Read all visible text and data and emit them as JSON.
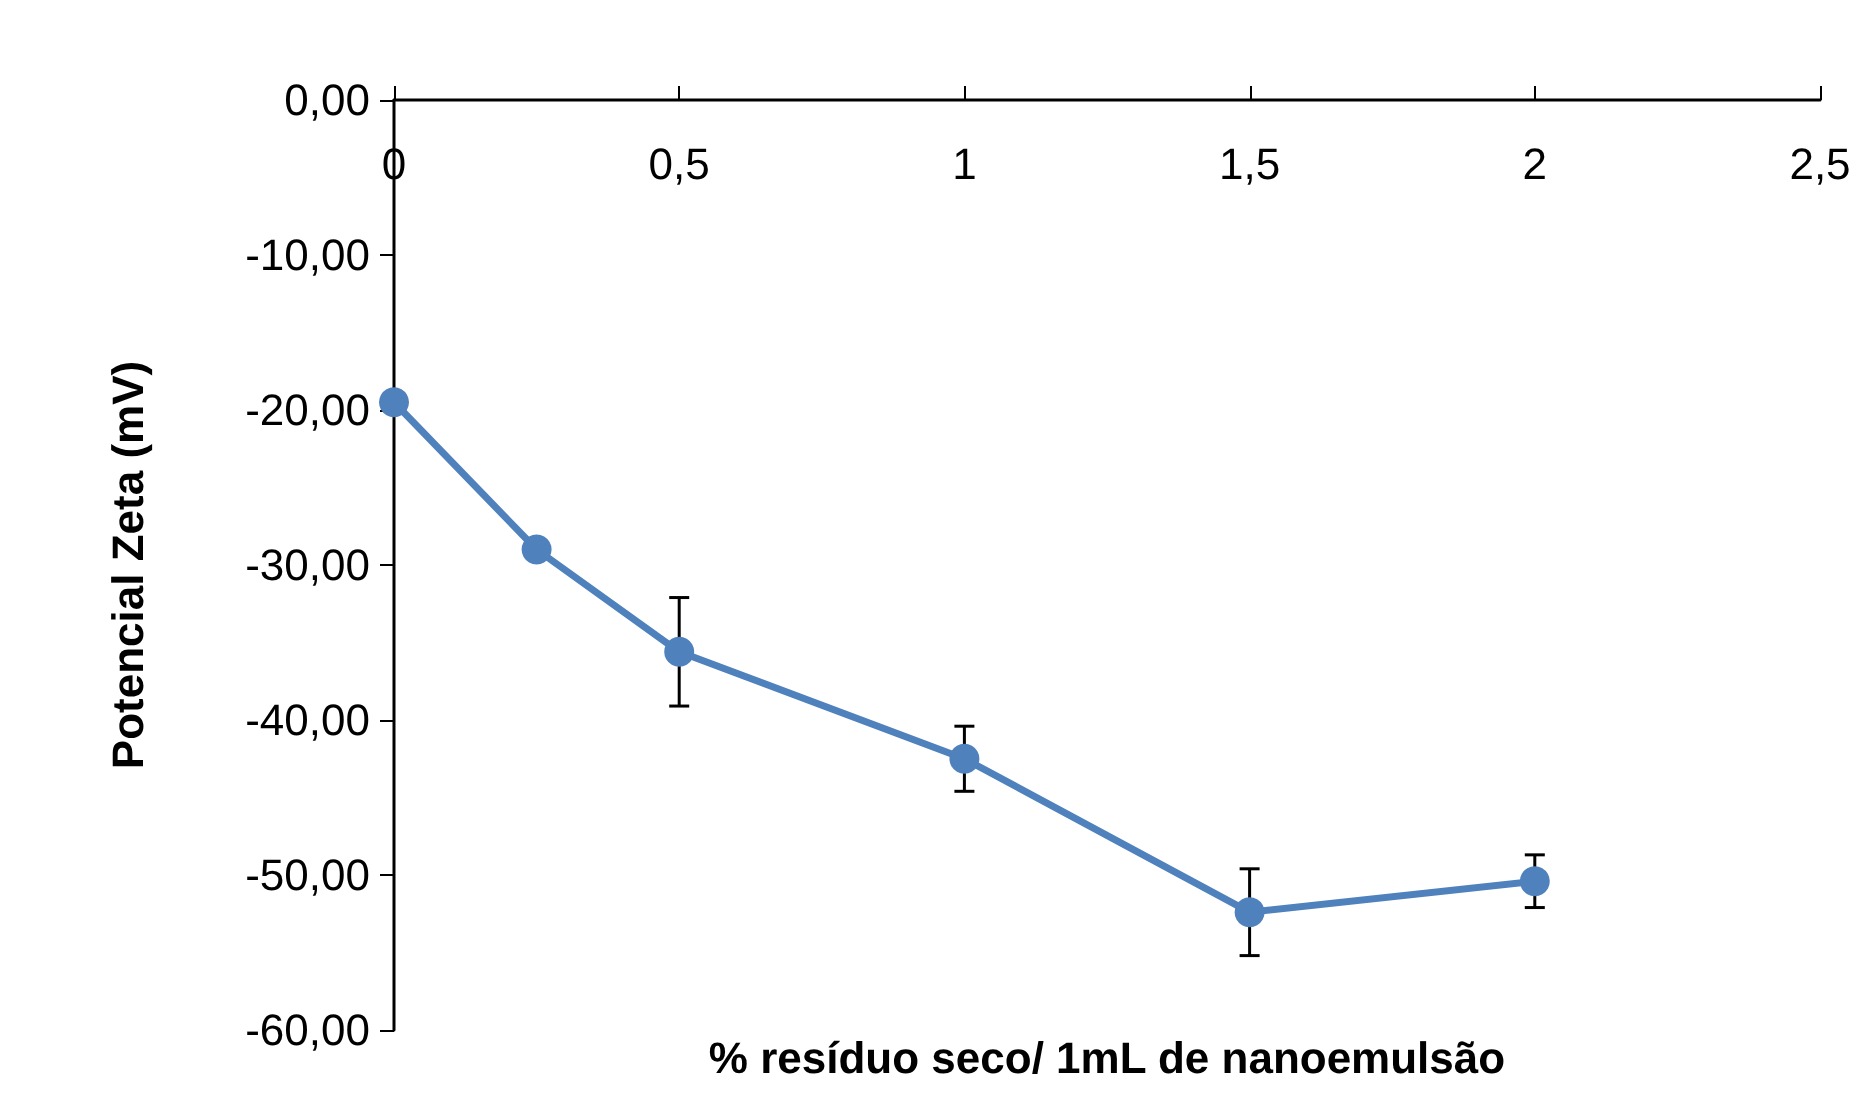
{
  "chart_data": {
    "type": "line",
    "xlabel": "% resíduo seco/ 1mL de nanoemulsão",
    "ylabel": "Potencial Zeta (mV)",
    "x": [
      0,
      0.25,
      0.5,
      1,
      1.5,
      2
    ],
    "series": [
      {
        "color": "#4f81bd",
        "values": [
          -19.5,
          -29.0,
          -35.6,
          -42.5,
          -52.4,
          -50.4
        ],
        "errors": [
          null,
          null,
          3.5,
          2.1,
          2.8,
          1.7
        ]
      }
    ],
    "xlim": [
      0,
      2.5
    ],
    "xticks": [
      0,
      {
        "value": 0.5,
        "label": "0,5"
      },
      1,
      {
        "value": 1.5,
        "label": "1,5"
      },
      2,
      {
        "value": 2.5,
        "label": "2,5"
      }
    ],
    "ylim": [
      -60,
      0
    ],
    "yticks": [
      {
        "value": -60,
        "label": "-60,00"
      },
      {
        "value": -50,
        "label": "-50,00"
      },
      {
        "value": -40,
        "label": "-40,00"
      },
      {
        "value": -30,
        "label": "-30,00"
      },
      {
        "value": -20,
        "label": "-20,00"
      },
      {
        "value": -10,
        "label": "-10,00"
      },
      {
        "value": 0,
        "label": "0,00"
      }
    ],
    "grid": false,
    "marker": "circle",
    "line_style": "solid"
  }
}
